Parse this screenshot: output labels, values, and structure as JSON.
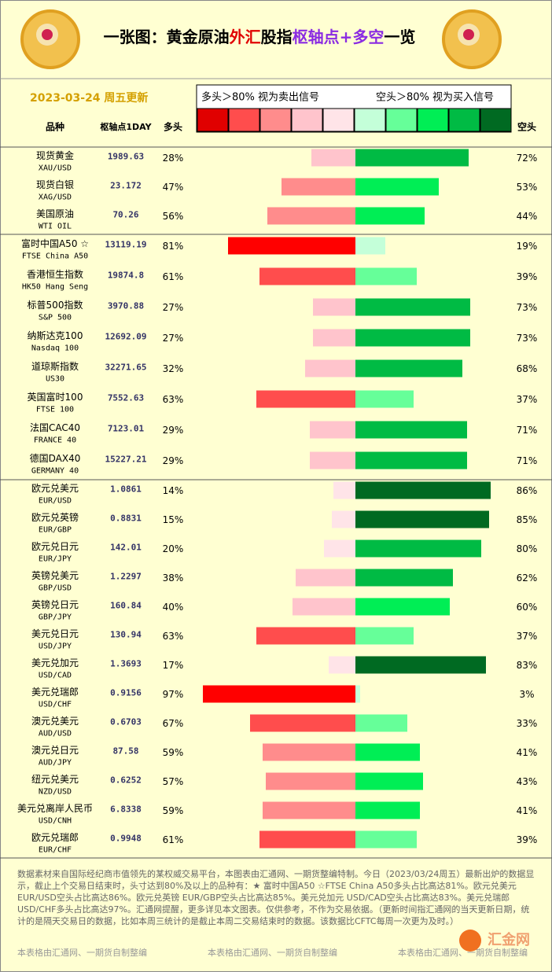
{
  "header": {
    "title_parts": [
      {
        "text": "一张图：黄金原油",
        "color": "#000000"
      },
      {
        "text": "外汇",
        "color": "#e00000"
      },
      {
        "text": "股指",
        "color": "#000000"
      },
      {
        "text": "枢轴点+多空",
        "color": "#8a2be2"
      },
      {
        "text": "一览",
        "color": "#000000"
      }
    ],
    "date": "2023-03-24 周五更新",
    "legend": {
      "long_text": "多头＞80% 视为卖出信号",
      "short_text": "空头＞80% 视为买入信号",
      "colors": [
        "#e00000",
        "#ff4d4d",
        "#ff8c8c",
        "#ffc4cc",
        "#ffe4e8",
        "#c4ffd9",
        "#66ff99",
        "#00ee55",
        "#00bb44",
        "#006a22"
      ]
    },
    "columns": {
      "name": "品种",
      "pivot": "枢轴点1DAY",
      "long": "多头",
      "short": "空头"
    }
  },
  "groups": [
    {
      "rows": [
        {
          "name": "现货黄金",
          "code": "XAU/USD",
          "pivot": "1989.63",
          "long": 28,
          "long_label": "28%",
          "long_color": "#ffc4cc",
          "short": 72,
          "short_label": "72%",
          "short_color": "#00bb44"
        },
        {
          "name": "现货白银",
          "code": "XAG/USD",
          "pivot": "23.172",
          "long": 47,
          "long_label": "47%",
          "long_color": "#ff8c8c",
          "short": 53,
          "short_label": "53%",
          "short_color": "#00ee55"
        },
        {
          "name": "美国原油",
          "code": "WTI OIL",
          "pivot": "70.26",
          "long": 56,
          "long_label": "56%",
          "long_color": "#ff8c8c",
          "short": 44,
          "short_label": "44%",
          "short_color": "#00ee55"
        }
      ]
    },
    {
      "rows": [
        {
          "name": "富时中国A50 ☆",
          "code": "FTSE China A50",
          "pivot": "13119.19",
          "long": 81,
          "long_label": "81%",
          "long_color": "#ff0000",
          "short": 19,
          "short_label": "19%",
          "short_color": "#c4ffd9"
        },
        {
          "name": "香港恒生指数",
          "code": "HK50 Hang Seng",
          "pivot": "19874.8",
          "long": 61,
          "long_label": "61%",
          "long_color": "#ff4d4d",
          "short": 39,
          "short_label": "39%",
          "short_color": "#66ff99"
        },
        {
          "name": "标普500指数",
          "code": "S&P 500",
          "pivot": "3970.88",
          "long": 27,
          "long_label": "27%",
          "long_color": "#ffc4cc",
          "short": 73,
          "short_label": "73%",
          "short_color": "#00bb44"
        },
        {
          "name": "纳斯达克100",
          "code": "Nasdaq 100",
          "pivot": "12692.09",
          "long": 27,
          "long_label": "27%",
          "long_color": "#ffc4cc",
          "short": 73,
          "short_label": "73%",
          "short_color": "#00bb44"
        },
        {
          "name": "道琼斯指数",
          "code": "US30",
          "pivot": "32271.65",
          "long": 32,
          "long_label": "32%",
          "long_color": "#ffc4cc",
          "short": 68,
          "short_label": "68%",
          "short_color": "#00bb44"
        },
        {
          "name": "英国富时100",
          "code": "FTSE 100",
          "pivot": "7552.63",
          "long": 63,
          "long_label": "63%",
          "long_color": "#ff4d4d",
          "short": 37,
          "short_label": "37%",
          "short_color": "#66ff99"
        },
        {
          "name": "法国CAC40",
          "code": "FRANCE 40",
          "pivot": "7123.01",
          "long": 29,
          "long_label": "29%",
          "long_color": "#ffc4cc",
          "short": 71,
          "short_label": "71%",
          "short_color": "#00bb44"
        },
        {
          "name": "德国DAX40",
          "code": "GERMANY 40",
          "pivot": "15227.21",
          "long": 29,
          "long_label": "29%",
          "long_color": "#ffc4cc",
          "short": 71,
          "short_label": "71%",
          "short_color": "#00bb44"
        }
      ]
    },
    {
      "rows": [
        {
          "name": "欧元兑美元",
          "code": "EUR/USD",
          "pivot": "1.0861",
          "long": 14,
          "long_label": "14%",
          "long_color": "#ffe4e8",
          "short": 86,
          "short_label": "86%",
          "short_color": "#006a22"
        },
        {
          "name": "欧元兑英镑",
          "code": "EUR/GBP",
          "pivot": "0.8831",
          "long": 15,
          "long_label": "15%",
          "long_color": "#ffe4e8",
          "short": 85,
          "short_label": "85%",
          "short_color": "#006a22"
        },
        {
          "name": "欧元兑日元",
          "code": "EUR/JPY",
          "pivot": "142.01",
          "long": 20,
          "long_label": "20%",
          "long_color": "#ffe4e8",
          "short": 80,
          "short_label": "80%",
          "short_color": "#00bb44"
        },
        {
          "name": "英镑兑美元",
          "code": "GBP/USD",
          "pivot": "1.2297",
          "long": 38,
          "long_label": "38%",
          "long_color": "#ffc4cc",
          "short": 62,
          "short_label": "62%",
          "short_color": "#00bb44"
        },
        {
          "name": "英镑兑日元",
          "code": "GBP/JPY",
          "pivot": "160.84",
          "long": 40,
          "long_label": "40%",
          "long_color": "#ffc4cc",
          "short": 60,
          "short_label": "60%",
          "short_color": "#00ee55"
        },
        {
          "name": "美元兑日元",
          "code": "USD/JPY",
          "pivot": "130.94",
          "long": 63,
          "long_label": "63%",
          "long_color": "#ff4d4d",
          "short": 37,
          "short_label": "37%",
          "short_color": "#66ff99"
        },
        {
          "name": "美元兑加元",
          "code": "USD/CAD",
          "pivot": "1.3693",
          "long": 17,
          "long_label": "17%",
          "long_color": "#ffe4e8",
          "short": 83,
          "short_label": "83%",
          "short_color": "#006a22"
        },
        {
          "name": "美元兑瑞郎",
          "code": "USD/CHF",
          "pivot": "0.9156",
          "long": 97,
          "long_label": "97%",
          "long_color": "#ff0000",
          "short": 3,
          "short_label": "3%",
          "short_color": "#c4ffd9"
        },
        {
          "name": "澳元兑美元",
          "code": "AUD/USD",
          "pivot": "0.6703",
          "long": 67,
          "long_label": "67%",
          "long_color": "#ff4d4d",
          "short": 33,
          "short_label": "33%",
          "short_color": "#66ff99"
        },
        {
          "name": "澳元兑日元",
          "code": "AUD/JPY",
          "pivot": "87.58",
          "long": 59,
          "long_label": "59%",
          "long_color": "#ff8c8c",
          "short": 41,
          "short_label": "41%",
          "short_color": "#00ee55"
        },
        {
          "name": "纽元兑美元",
          "code": "NZD/USD",
          "pivot": "0.6252",
          "long": 57,
          "long_label": "57%",
          "long_color": "#ff8c8c",
          "short": 43,
          "short_label": "43%",
          "short_color": "#00ee55"
        },
        {
          "name": "美元兑离岸人民币",
          "code": "USD/CNH",
          "pivot": "6.8338",
          "long": 59,
          "long_label": "59%",
          "long_color": "#ff8c8c",
          "short": 41,
          "short_label": "41%",
          "short_color": "#00ee55"
        },
        {
          "name": "欧元兑瑞郎",
          "code": "EUR/CHF",
          "pivot": "0.9948",
          "long": 61,
          "long_label": "61%",
          "long_color": "#ff4d4d",
          "short": 39,
          "short_label": "39%",
          "short_color": "#66ff99"
        }
      ]
    }
  ],
  "footer": {
    "text": "数据素材来自国际经纪商市值领先的某权威交易平台，本图表由汇通网、一期货整编特制。今日（2023/03/24周五）最新出炉的数据显示，截止上个交易日结束时，头寸达到80%及以上的品种有：★ 富时中国A50 ☆FTSE China A50多头占比高达81%。欧元兑美元 EUR/USD空头占比高达86%。欧元兑英镑 EUR/GBP空头占比高达85%。美元兑加元 USD/CAD空头占比高达83%。美元兑瑞郎 USD/CHF多头占比高达97%。汇通网提醒，更多详见本文图表。仅供参考，不作为交易依据。（更新时间指汇通网的当天更新日期，统计的是隔天交易日的数据，比如本周三统计的是截止本周二交易结束时的数据。该数据比CFTC每周一次更为及时。）",
    "watermark": "本表格由汇通网、一期货自制整编",
    "brand": "汇金网"
  }
}
